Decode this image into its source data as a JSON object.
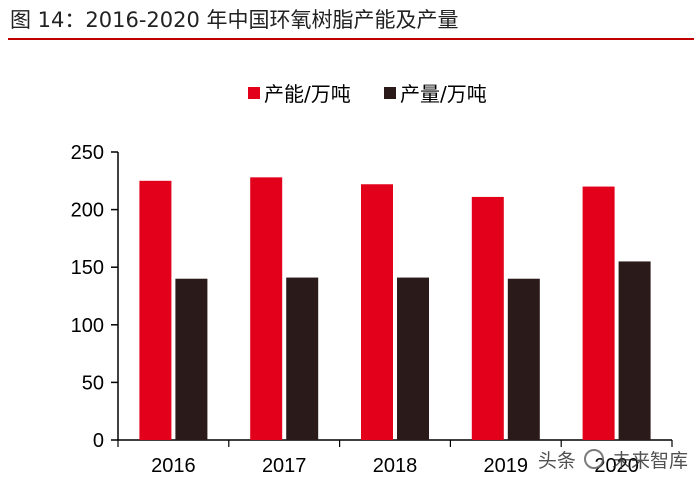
{
  "figure": {
    "title": "图 14：2016-2020 年中国环氧树脂产能及产量",
    "rule_color": "#c00000"
  },
  "watermark": {
    "prefix": "头条",
    "source": "未来智库",
    "icon": "wechat-logo-icon"
  },
  "chart_data": {
    "type": "bar",
    "title": "2016-2020 年中国环氧树脂产能及产量",
    "xlabel": "",
    "ylabel": "",
    "categories": [
      "2016",
      "2017",
      "2018",
      "2019",
      "2020"
    ],
    "series": [
      {
        "name": "产能/万吨",
        "values": [
          225,
          228,
          222,
          211,
          220
        ],
        "color": "#e3001b"
      },
      {
        "name": "产量/万吨",
        "values": [
          140,
          141,
          141,
          140,
          155
        ],
        "color": "#2b1a1a"
      }
    ],
    "ylim": [
      0,
      250
    ],
    "yticks": [
      0,
      50,
      100,
      150,
      200,
      250
    ],
    "legend_position": "top",
    "grid": false
  }
}
